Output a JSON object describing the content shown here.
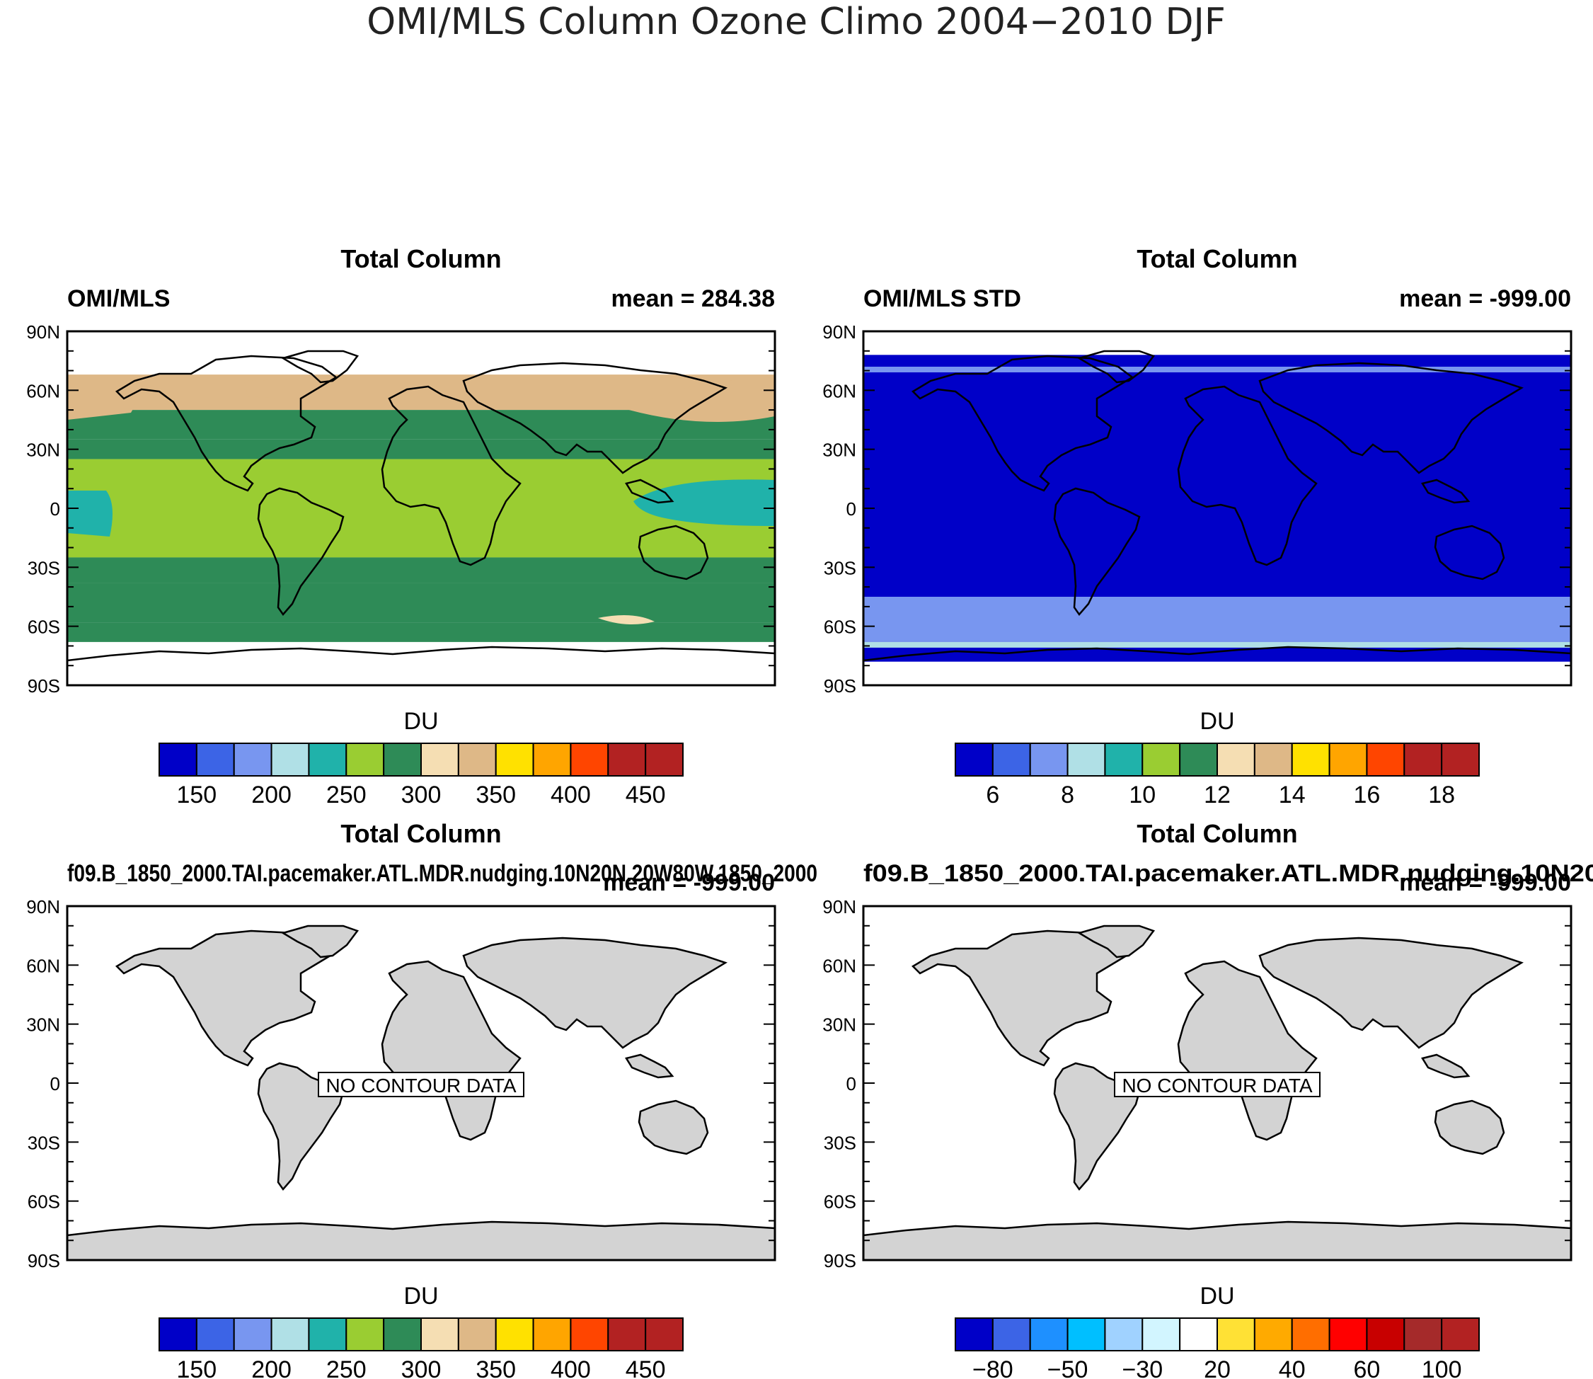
{
  "figure_title": "OMI/MLS Column Ozone Climo 2004−2010 DJF",
  "no_data_label": "NO CONTOUR DATA",
  "chart_data": [
    {
      "type": "heatmap",
      "id": "p1",
      "title": "Total Column",
      "left_label": "OMI/MLS",
      "right_label": "mean = 284.38",
      "ylabel_ticks": [
        "90N",
        "60N",
        "30N",
        "0",
        "30S",
        "60S",
        "90S"
      ],
      "colorbar_title": "DU",
      "colorbar_ticks": [
        "150",
        "200",
        "250",
        "300",
        "350",
        "400",
        "450"
      ],
      "colorbar_colors": [
        "#0000c8",
        "#3c64e6",
        "#7896f0",
        "#b0e0e6",
        "#20b2aa",
        "#9acd32",
        "#2e8b57",
        "#f5deb3",
        "#deb887",
        "#ffe100",
        "#ffa500",
        "#ff4500",
        "#b22222",
        "#b22222"
      ],
      "has_data": true,
      "zonal_bands": [
        {
          "lat_max": 90,
          "lat_min": 68,
          "value": "missing"
        },
        {
          "lat_max": 68,
          "lat_min": 50,
          "value": 340
        },
        {
          "lat_max": 50,
          "lat_min": 35,
          "value": 310
        },
        {
          "lat_max": 35,
          "lat_min": 25,
          "value": 290
        },
        {
          "lat_max": 25,
          "lat_min": -25,
          "value": 270
        },
        {
          "lat_max": -25,
          "lat_min": -38,
          "value": 290
        },
        {
          "lat_max": -38,
          "lat_min": -58,
          "value": 310
        },
        {
          "lat_max": -58,
          "lat_min": -68,
          "value": 290
        },
        {
          "lat_max": -68,
          "lat_min": -90,
          "value": "missing"
        }
      ],
      "features": [
        {
          "name": "North Pacific high ozone",
          "value": 360
        },
        {
          "name": "North Atlantic high ozone",
          "value": 360
        },
        {
          "name": "Tropical western Pacific low ozone",
          "value": 255
        },
        {
          "name": "Tropical eastern Pacific low ozone",
          "value": 255
        }
      ]
    },
    {
      "type": "heatmap",
      "id": "p2",
      "title": "Total Column",
      "left_label": "OMI/MLS STD",
      "right_label": "mean = -999.00",
      "ylabel_ticks": [
        "90N",
        "60N",
        "30N",
        "0",
        "30S",
        "60S",
        "90S"
      ],
      "colorbar_title": "DU",
      "colorbar_ticks": [
        "6",
        "8",
        "10",
        "12",
        "14",
        "16",
        "18"
      ],
      "colorbar_colors": [
        "#0000c8",
        "#3c64e6",
        "#7896f0",
        "#b0e0e6",
        "#20b2aa",
        "#9acd32",
        "#2e8b57",
        "#f5deb3",
        "#deb887",
        "#ffe100",
        "#ffa500",
        "#ff4500",
        "#b22222",
        "#b22222"
      ],
      "has_data": true,
      "zonal_bands": [
        {
          "lat_max": 90,
          "lat_min": 78,
          "value": "missing"
        },
        {
          "lat_max": 78,
          "lat_min": 45,
          "value": 5.5
        },
        {
          "lat_max": 45,
          "lat_min": -45,
          "value": 5
        },
        {
          "lat_max": -45,
          "lat_min": -68,
          "value": 7
        },
        {
          "lat_max": -68,
          "lat_min": -78,
          "value": 5
        },
        {
          "lat_max": -78,
          "lat_min": -90,
          "value": "missing"
        }
      ]
    },
    {
      "type": "heatmap",
      "id": "p3",
      "title": "Total Column",
      "left_label": "f09.B_1850_2000.TAI.pacemaker.ATL.MDR.nudging.10N20N.20W80W.1850_2000",
      "right_label": "mean = -999.00",
      "ylabel_ticks": [
        "90N",
        "60N",
        "30N",
        "0",
        "30S",
        "60S",
        "90S"
      ],
      "colorbar_title": "DU",
      "colorbar_ticks": [
        "150",
        "200",
        "250",
        "300",
        "350",
        "400",
        "450"
      ],
      "colorbar_colors": [
        "#0000c8",
        "#3c64e6",
        "#7896f0",
        "#b0e0e6",
        "#20b2aa",
        "#9acd32",
        "#2e8b57",
        "#f5deb3",
        "#deb887",
        "#ffe100",
        "#ffa500",
        "#ff4500",
        "#b22222",
        "#b22222"
      ],
      "has_data": false
    },
    {
      "type": "heatmap",
      "id": "p4",
      "title": "Total Column",
      "left_label": "f09.B_1850_2000.TAI.pacemaker.ATL.MDR.nudging.10N20",
      "right_label": "mean = -999.00",
      "ylabel_ticks": [
        "90N",
        "60N",
        "30N",
        "0",
        "30S",
        "60S",
        "90S"
      ],
      "colorbar_title": "DU",
      "colorbar_ticks": [
        "−80",
        "−50",
        "−30",
        "20",
        "40",
        "60",
        "100"
      ],
      "colorbar_colors": [
        "#0000c8",
        "#3c64e6",
        "#1e90ff",
        "#00bfff",
        "#a0d2ff",
        "#d2f5ff",
        "#ffffff",
        "#ffe135",
        "#ffaa00",
        "#ff6e00",
        "#ff0000",
        "#c80000",
        "#a52a2a",
        "#b22222"
      ],
      "has_data": false
    }
  ]
}
